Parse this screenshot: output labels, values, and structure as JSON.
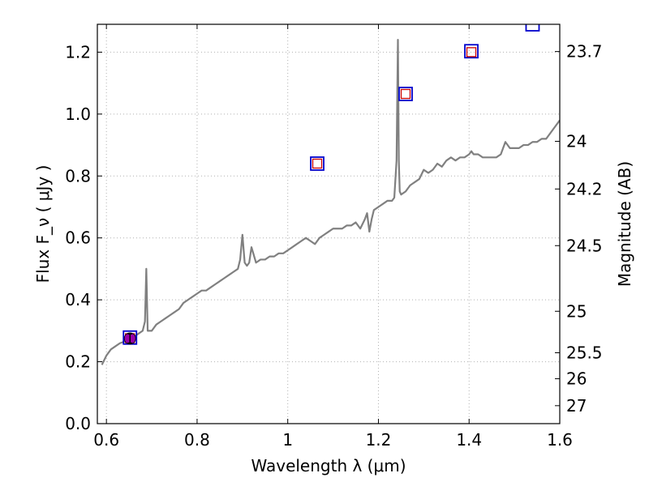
{
  "chart_data": {
    "type": "line",
    "xlabel": "Wavelength  λ (μm)",
    "ylabel": "Flux  F_ν  ( μJy )",
    "ylabel_right": "Magnitude (AB)",
    "xlim": [
      0.58,
      1.6
    ],
    "ylim": [
      0.0,
      1.29
    ],
    "grid": true,
    "x_ticks": [
      0.6,
      0.8,
      1.0,
      1.2,
      1.4,
      1.6
    ],
    "x_tick_labels": [
      "0.6",
      "0.8",
      "1",
      "1.2",
      "1.4",
      "1.6"
    ],
    "y_ticks": [
      0.0,
      0.2,
      0.4,
      0.6,
      0.8,
      1.0,
      1.2
    ],
    "y_tick_labels": [
      "0.0",
      "0.2",
      "0.4",
      "0.6",
      "0.8",
      "1.0",
      "1.2"
    ],
    "right_ticks": [
      {
        "label": "23.7",
        "flux": 1.202
      },
      {
        "label": "24",
        "flux": 0.912
      },
      {
        "label": "24.2",
        "flux": 0.758
      },
      {
        "label": "24.5",
        "flux": 0.575
      },
      {
        "label": "25",
        "flux": 0.363
      },
      {
        "label": "25.5",
        "flux": 0.229
      },
      {
        "label": "26",
        "flux": 0.145
      },
      {
        "label": "27",
        "flux": 0.058
      }
    ],
    "colors": {
      "spectrum": "#808080",
      "photometry_square": "#0000cc",
      "model_square": "#cc0000",
      "circle_fill": "#9900aa",
      "grid": "#b0b0b0"
    },
    "series": [
      {
        "kind": "spectrum",
        "x": [
          0.59,
          0.6,
          0.61,
          0.62,
          0.63,
          0.64,
          0.65,
          0.66,
          0.67,
          0.68,
          0.685,
          0.688,
          0.691,
          0.7,
          0.71,
          0.72,
          0.73,
          0.74,
          0.75,
          0.76,
          0.77,
          0.78,
          0.79,
          0.8,
          0.81,
          0.82,
          0.83,
          0.84,
          0.85,
          0.86,
          0.87,
          0.88,
          0.89,
          0.895,
          0.9,
          0.905,
          0.91,
          0.915,
          0.92,
          0.93,
          0.94,
          0.95,
          0.96,
          0.97,
          0.98,
          0.99,
          1.0,
          1.01,
          1.02,
          1.03,
          1.04,
          1.05,
          1.06,
          1.07,
          1.08,
          1.09,
          1.1,
          1.11,
          1.12,
          1.13,
          1.14,
          1.15,
          1.16,
          1.17,
          1.175,
          1.18,
          1.185,
          1.19,
          1.2,
          1.21,
          1.22,
          1.23,
          1.235,
          1.24,
          1.243,
          1.245,
          1.247,
          1.25,
          1.26,
          1.27,
          1.28,
          1.29,
          1.3,
          1.31,
          1.32,
          1.33,
          1.34,
          1.35,
          1.36,
          1.37,
          1.38,
          1.39,
          1.4,
          1.405,
          1.41,
          1.42,
          1.43,
          1.44,
          1.45,
          1.46,
          1.47,
          1.475,
          1.48,
          1.49,
          1.5,
          1.51,
          1.52,
          1.53,
          1.54,
          1.55,
          1.56,
          1.57,
          1.58,
          1.59,
          1.6
        ],
        "y": [
          0.19,
          0.22,
          0.24,
          0.25,
          0.26,
          0.265,
          0.27,
          0.28,
          0.29,
          0.3,
          0.33,
          0.5,
          0.3,
          0.3,
          0.32,
          0.33,
          0.34,
          0.35,
          0.36,
          0.37,
          0.39,
          0.4,
          0.41,
          0.42,
          0.43,
          0.43,
          0.44,
          0.45,
          0.46,
          0.47,
          0.48,
          0.49,
          0.5,
          0.53,
          0.61,
          0.52,
          0.51,
          0.52,
          0.57,
          0.52,
          0.53,
          0.53,
          0.54,
          0.54,
          0.55,
          0.55,
          0.56,
          0.57,
          0.58,
          0.59,
          0.6,
          0.59,
          0.58,
          0.6,
          0.61,
          0.62,
          0.63,
          0.63,
          0.63,
          0.64,
          0.64,
          0.65,
          0.63,
          0.66,
          0.68,
          0.62,
          0.66,
          0.69,
          0.7,
          0.71,
          0.72,
          0.72,
          0.73,
          0.85,
          1.24,
          0.85,
          0.75,
          0.74,
          0.75,
          0.77,
          0.78,
          0.79,
          0.82,
          0.81,
          0.82,
          0.84,
          0.83,
          0.85,
          0.86,
          0.85,
          0.86,
          0.86,
          0.87,
          0.88,
          0.87,
          0.87,
          0.86,
          0.86,
          0.86,
          0.86,
          0.87,
          0.89,
          0.91,
          0.89,
          0.89,
          0.89,
          0.9,
          0.9,
          0.91,
          0.91,
          0.92,
          0.92,
          0.94,
          0.96,
          0.98
        ]
      },
      {
        "kind": "photometry",
        "points": [
          {
            "x": 0.652,
            "y": 0.278
          },
          {
            "x": 1.065,
            "y": 0.84
          },
          {
            "x": 1.26,
            "y": 1.065
          },
          {
            "x": 1.405,
            "y": 1.203
          },
          {
            "x": 1.54,
            "y": 1.29
          }
        ]
      },
      {
        "kind": "model",
        "points": [
          {
            "x": 0.652,
            "y": 0.276
          },
          {
            "x": 1.065,
            "y": 0.84
          },
          {
            "x": 1.26,
            "y": 1.065
          },
          {
            "x": 1.405,
            "y": 1.2
          }
        ]
      },
      {
        "kind": "measurement",
        "points": [
          {
            "x": 0.652,
            "y": 0.275,
            "yerr": 0.015
          }
        ]
      }
    ]
  }
}
